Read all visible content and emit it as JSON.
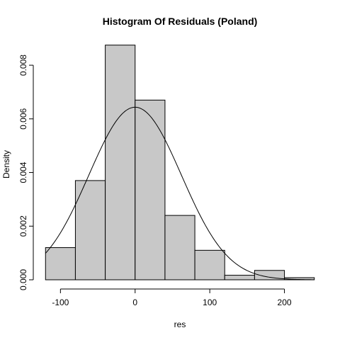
{
  "chart_data": {
    "type": "bar",
    "title": "Histogram Of Residuals (Poland)",
    "xlabel": "res",
    "ylabel": "Density",
    "xlim": [
      -125,
      245
    ],
    "ylim": [
      0,
      0.0089
    ],
    "x_ticks": [
      -100,
      0,
      100,
      200
    ],
    "x_tick_labels": [
      "-100",
      "0",
      "100",
      "200"
    ],
    "y_ticks": [
      0,
      0.002,
      0.004,
      0.006,
      0.008
    ],
    "y_tick_labels": [
      "0.000",
      "0.002",
      "0.004",
      "0.006",
      "0.008"
    ],
    "bins": [
      {
        "start": -120,
        "end": -80,
        "density": 0.0012
      },
      {
        "start": -80,
        "end": -40,
        "density": 0.0037
      },
      {
        "start": -40,
        "end": 0,
        "density": 0.00875
      },
      {
        "start": 0,
        "end": 40,
        "density": 0.0067
      },
      {
        "start": 40,
        "end": 80,
        "density": 0.0024
      },
      {
        "start": 80,
        "end": 120,
        "density": 0.0011
      },
      {
        "start": 120,
        "end": 160,
        "density": 0.00017
      },
      {
        "start": 160,
        "end": 200,
        "density": 0.00035
      },
      {
        "start": 200,
        "end": 240,
        "density": 8e-05
      }
    ],
    "normal_curve": {
      "mean": 0,
      "sd": 62,
      "x_range": [
        -120,
        240
      ]
    },
    "grid": false,
    "legend": "none"
  }
}
